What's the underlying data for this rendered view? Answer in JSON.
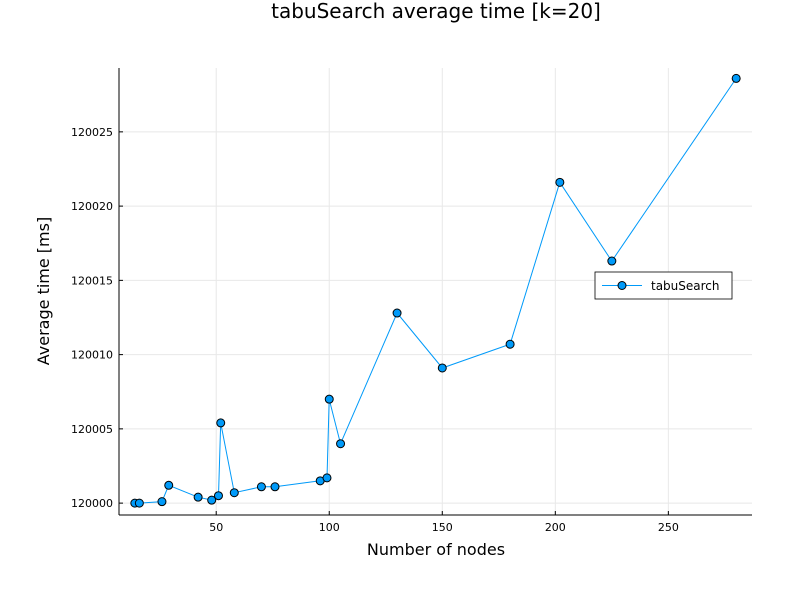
{
  "chart_data": {
    "type": "line",
    "title": "tabuSearch average time [k=20]",
    "xlabel": "Number of nodes",
    "ylabel": "Average time [ms]",
    "xlim": [
      7,
      287
    ],
    "ylim": [
      119999.2,
      120029.3
    ],
    "xticks": [
      50,
      100,
      150,
      200,
      250
    ],
    "yticks": [
      120000,
      120005,
      120010,
      120015,
      120020,
      120025
    ],
    "grid": true,
    "legend_position": "right",
    "series": [
      {
        "name": "tabuSearch",
        "color": "#009af9",
        "marker": "circle",
        "x": [
          14,
          16,
          26,
          29,
          42,
          48,
          51,
          52,
          58,
          70,
          76,
          96,
          99,
          100,
          105,
          130,
          150,
          180,
          202,
          225,
          280
        ],
        "y": [
          120000.0,
          120000.0,
          120000.1,
          120001.2,
          120000.4,
          120000.2,
          120000.5,
          120005.4,
          120000.7,
          120001.1,
          120001.1,
          120001.5,
          120001.7,
          120007.0,
          120004.0,
          120012.8,
          120009.1,
          120010.7,
          120021.6,
          120016.3,
          120028.6
        ]
      }
    ]
  }
}
